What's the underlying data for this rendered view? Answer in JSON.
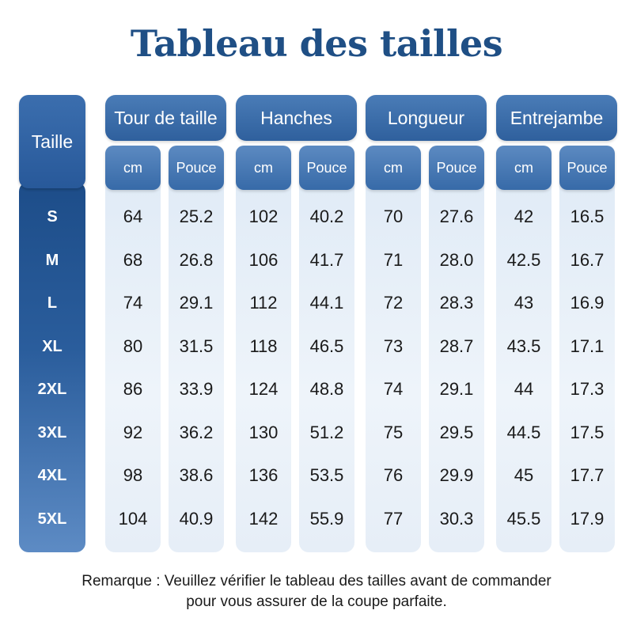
{
  "title": "Tableau des tailles",
  "size_header": "Taille",
  "groups": [
    {
      "label": "Tour de taille",
      "units": [
        "cm",
        "Pouce"
      ]
    },
    {
      "label": "Hanches",
      "units": [
        "cm",
        "Pouce"
      ]
    },
    {
      "label": "Longueur",
      "units": [
        "cm",
        "Pouce"
      ]
    },
    {
      "label": "Entrejambe",
      "units": [
        "cm",
        "Pouce"
      ]
    }
  ],
  "sizes": [
    "S",
    "M",
    "L",
    "XL",
    "2XL",
    "3XL",
    "4XL",
    "5XL"
  ],
  "rows": [
    [
      "64",
      "25.2",
      "102",
      "40.2",
      "70",
      "27.6",
      "42",
      "16.5"
    ],
    [
      "68",
      "26.8",
      "106",
      "41.7",
      "71",
      "28.0",
      "42.5",
      "16.7"
    ],
    [
      "74",
      "29.1",
      "112",
      "44.1",
      "72",
      "28.3",
      "43",
      "16.9"
    ],
    [
      "80",
      "31.5",
      "118",
      "46.5",
      "73",
      "28.7",
      "43.5",
      "17.1"
    ],
    [
      "86",
      "33.9",
      "124",
      "48.8",
      "74",
      "29.1",
      "44",
      "17.3"
    ],
    [
      "92",
      "36.2",
      "130",
      "51.2",
      "75",
      "29.5",
      "44.5",
      "17.5"
    ],
    [
      "98",
      "38.6",
      "136",
      "53.5",
      "76",
      "29.9",
      "45",
      "17.7"
    ],
    [
      "104",
      "40.9",
      "142",
      "55.9",
      "77",
      "30.3",
      "45.5",
      "17.9"
    ]
  ],
  "note": {
    "line1": "Remarque : Veuillez vérifier le tableau des tailles avant de commander",
    "line2": "pour vous assurer de la coupe parfaite."
  }
}
